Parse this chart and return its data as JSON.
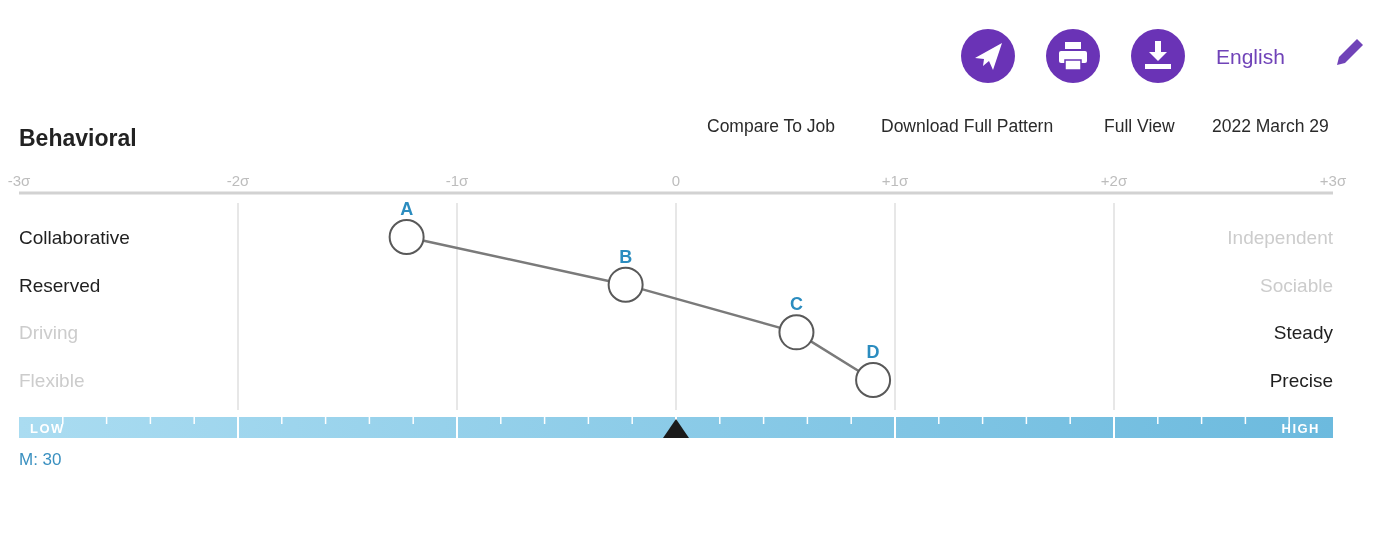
{
  "chart_data": {
    "type": "line",
    "title": "Behavioral",
    "orientation": "horizontal",
    "categories": [
      "Collaborative",
      "Reserved",
      "Driving",
      "Flexible"
    ],
    "y2_categories": [
      "Independent",
      "Sociable",
      "Steady",
      "Precise"
    ],
    "values": [
      -1.23,
      -0.23,
      0.55,
      0.9
    ],
    "value_labels": [
      "A",
      "B",
      "C",
      "D"
    ],
    "color": "#7a7a7a",
    "marker": "circle",
    "line_style": "solid",
    "xlim": [
      -3,
      3
    ],
    "xticks": [
      {
        "value": -3,
        "label": "-3σ"
      },
      {
        "value": -2,
        "label": "-2σ"
      },
      {
        "value": -1,
        "label": "-1σ"
      },
      0,
      {
        "value": 1,
        "label": "+1σ"
      },
      {
        "value": 2,
        "label": "+2σ"
      },
      {
        "value": 3,
        "label": "+3σ"
      }
    ],
    "grid": "x",
    "annotations": [
      "Compare To Job",
      "Download Full Pattern",
      "Full View",
      "2022 March 29",
      "English",
      "LOW",
      "HIGH",
      "M: 30"
    ]
  }
}
